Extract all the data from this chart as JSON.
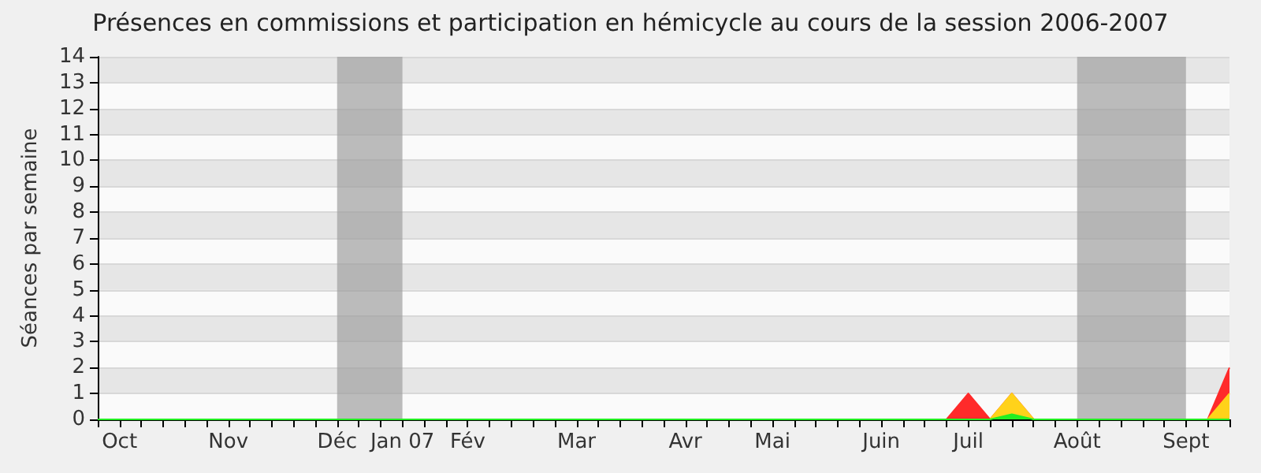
{
  "chart_data": {
    "type": "area",
    "title": "Présences en commissions et participation en hémicycle au cours de la session 2006-2007",
    "ylabel": "Séances par semaine",
    "categories": [
      null,
      "Oct",
      null,
      null,
      null,
      null,
      "Nov",
      null,
      null,
      null,
      null,
      "Déc",
      null,
      null,
      "Jan 07",
      null,
      null,
      "Fév",
      null,
      null,
      null,
      null,
      "Mar",
      null,
      null,
      null,
      null,
      "Avr",
      null,
      null,
      null,
      "Mai",
      null,
      null,
      null,
      null,
      "Juin",
      null,
      null,
      null,
      "Juil",
      null,
      null,
      null,
      null,
      "Août",
      null,
      null,
      null,
      null,
      "Sept",
      null,
      null
    ],
    "series": [
      {
        "color": "#ff2a2a",
        "values": [
          0,
          0,
          0,
          0,
          0,
          0,
          0,
          0,
          0,
          0,
          0,
          0,
          0,
          0,
          0,
          0,
          0,
          0,
          0,
          0,
          0,
          0,
          0,
          0,
          0,
          0,
          0,
          0,
          0,
          0,
          0,
          0,
          0,
          0,
          0,
          0,
          0,
          0,
          0,
          0,
          1,
          0,
          1,
          0,
          0,
          0,
          0,
          0,
          0,
          0,
          0,
          0,
          2
        ]
      },
      {
        "color": "#ffd21a",
        "values": [
          0,
          0,
          0,
          0,
          0,
          0,
          0,
          0,
          0,
          0,
          0,
          0,
          0,
          0,
          0,
          0,
          0,
          0,
          0,
          0,
          0,
          0,
          0,
          0,
          0,
          0,
          0,
          0,
          0,
          0,
          0,
          0,
          0,
          0,
          0,
          0,
          0,
          0,
          0,
          0,
          0,
          0,
          1,
          0,
          0,
          0,
          0,
          0,
          0,
          0,
          0,
          0,
          1
        ]
      },
      {
        "color": "#22ee22",
        "values": [
          0,
          0,
          0,
          0,
          0,
          0,
          0,
          0,
          0,
          0,
          0,
          0,
          0,
          0,
          0,
          0,
          0,
          0,
          0,
          0,
          0,
          0,
          0,
          0,
          0,
          0,
          0,
          0,
          0,
          0,
          0,
          0,
          0,
          0,
          0,
          0,
          0,
          0,
          0,
          0,
          0,
          0,
          0.2,
          0,
          0,
          0,
          0,
          0,
          0,
          0,
          0,
          0,
          0
        ]
      }
    ],
    "ylim": [
      0,
      14
    ],
    "yticks": [
      0,
      1,
      2,
      3,
      4,
      5,
      6,
      7,
      8,
      9,
      10,
      11,
      12,
      13,
      14
    ],
    "grid": "y",
    "marker": "none",
    "bands": [
      {
        "axis": "x",
        "from": "Déc",
        "to": "Jan 07",
        "color": "#a0a0a0"
      },
      {
        "axis": "x",
        "from": "Août",
        "to": "Sept",
        "color": "#a0a0a0"
      }
    ]
  }
}
